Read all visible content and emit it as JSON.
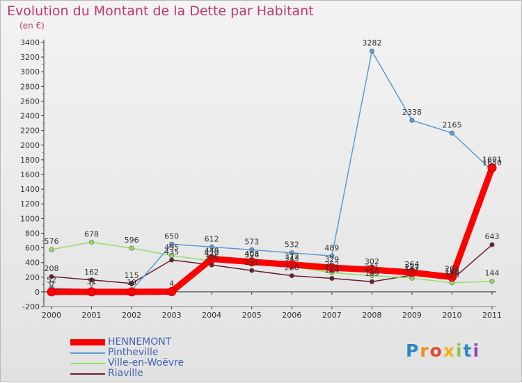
{
  "chart_data": {
    "type": "line",
    "title": "Evolution du Montant de la Dette par Habitant",
    "unit_label": "(en €)",
    "x": [
      "2000",
      "2001",
      "2002",
      "2003",
      "2004",
      "2005",
      "2006",
      "2007",
      "2008",
      "2009",
      "2010",
      "2011"
    ],
    "ylim": [
      -200,
      3400
    ],
    "y_ticks": [
      -200,
      0,
      200,
      400,
      600,
      800,
      1000,
      1200,
      1400,
      1600,
      1800,
      2000,
      2200,
      2400,
      2600,
      2800,
      3000,
      3200,
      3400
    ],
    "grid": false,
    "legend_position": "bottom-left",
    "series": [
      {
        "name": "HENNEMONT",
        "color": "#ff0000",
        "values": [
          0,
          0,
          0,
          4,
          449,
          408,
          372,
          329,
          302,
          264,
          201,
          1691
        ]
      },
      {
        "name": "Pintheville",
        "color": "#5b9bd5",
        "values": [
          52,
          31,
          19,
          650,
          612,
          573,
          532,
          489,
          3282,
          2338,
          2165,
          1650
        ]
      },
      {
        "name": "Ville-en-Woëvre",
        "color": "#90e060",
        "values": [
          576,
          678,
          596,
          495,
          420,
          394,
          343,
          262,
          221,
          187,
          123,
          144
        ]
      },
      {
        "name": "Riaville",
        "color": "#6b1c2e",
        "values": [
          208,
          162,
          115,
          435,
          366,
          291,
          220,
          184,
          139,
          227,
          168,
          643
        ]
      }
    ]
  },
  "legend": {
    "items": [
      "HENNEMONT",
      "Pintheville",
      "Ville-en-Woëvre",
      "Riaville"
    ]
  },
  "logo": {
    "letters": [
      "P",
      "r",
      "o",
      "x",
      "i",
      "t",
      "i"
    ]
  }
}
